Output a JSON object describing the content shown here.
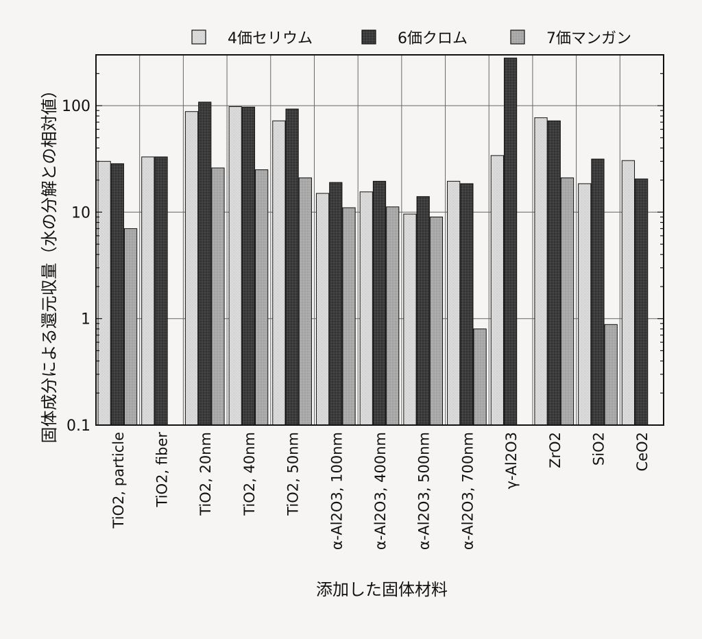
{
  "chart_data": {
    "type": "bar",
    "xlabel": "添加した固体材料",
    "ylabel": "固体成分による還元収量（水の分解との相対値）",
    "yscale": "log",
    "ylim": [
      0.1,
      300
    ],
    "yticks": [
      {
        "value": 0.1,
        "label": "0.1"
      },
      {
        "value": 1,
        "label": "1"
      },
      {
        "value": 10,
        "label": "10"
      },
      {
        "value": 100,
        "label": "100"
      }
    ],
    "grid": true,
    "legend_position": "top",
    "categories": [
      "TiO2, particle",
      "TiO2, fiber",
      "TiO2, 20nm",
      "TiO2, 40nm",
      "TiO2, 50nm",
      "α-Al2O3, 100nm",
      "α-Al2O3, 400nm",
      "α-Al2O3, 500nm",
      "α-Al2O3, 700nm",
      "γ-Al2O3",
      "ZrO2",
      "SiO2",
      "CeO2"
    ],
    "series": [
      {
        "name": "4価セリウム",
        "color": "#d9d9d9",
        "values": [
          30,
          33,
          88,
          98,
          72,
          15,
          15.5,
          9.6,
          19.5,
          34,
          77,
          18.5,
          30.5
        ]
      },
      {
        "name": "6価クロム",
        "color": "#3a3a3a",
        "values": [
          28.5,
          33,
          108,
          97,
          93,
          19,
          19.5,
          14,
          18.5,
          280,
          72,
          31.5,
          20.5
        ]
      },
      {
        "name": "7価マンガン",
        "color": "#a8a8a8",
        "values": [
          7,
          null,
          26,
          25,
          21,
          11,
          11.2,
          9,
          0.8,
          null,
          21,
          0.88,
          null
        ]
      }
    ]
  }
}
